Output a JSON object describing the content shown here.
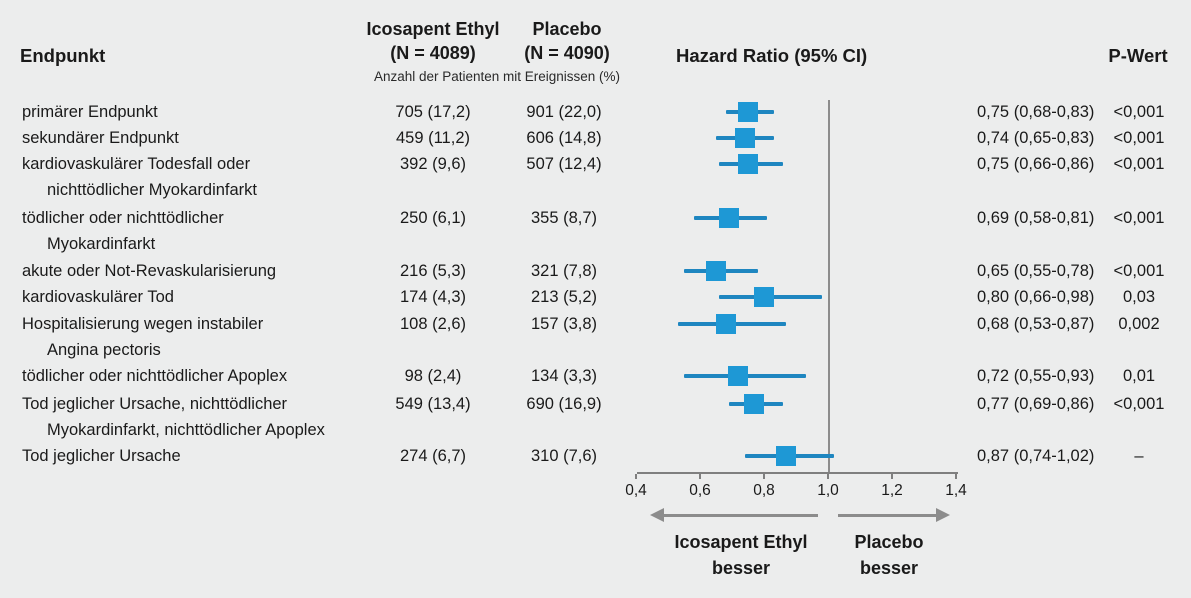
{
  "header": {
    "endpoint_col": "Endpunkt",
    "group1_line1": "Icosapent Ethyl",
    "group1_line2": "(N = 4089)",
    "group2_line1": "Placebo",
    "group2_line2": "(N = 4090)",
    "events_note": "Anzahl der Patienten mit Ereignissen (%)",
    "hr_col": "Hazard Ratio (95% CI)",
    "p_col": "P-Wert"
  },
  "footer": {
    "left_arrow_line1": "Icosapent Ethyl",
    "left_arrow_line2": "besser",
    "right_arrow_line1": "Placebo",
    "right_arrow_line2": "besser"
  },
  "colors": {
    "background": "#ECEDED",
    "text": "#1A1A1A",
    "marker_blue": "#1E98D5",
    "ci_line_blue": "#1E86C0",
    "reference_line_gray": "#8C8C8C",
    "axis_gray": "#7F7F7F"
  },
  "chart_data": {
    "type": "forest",
    "title": "",
    "x_axis": {
      "range": [
        0.4,
        1.4
      ],
      "ticks": [
        0.4,
        0.6,
        0.8,
        1.0,
        1.2,
        1.4
      ],
      "tick_labels": [
        "0,4",
        "0,6",
        "0,8",
        "1,0",
        "1,2",
        "1,4"
      ],
      "reference_line": 1.0
    },
    "rows": [
      {
        "label_lines": [
          "primärer Endpunkt"
        ],
        "icosapent": "705 (17,2)",
        "placebo": "901 (22,0)",
        "hr": 0.75,
        "ci_low": 0.68,
        "ci_high": 0.83,
        "hr_ci_text": "0,75 (0,68-0,83)",
        "p_value": "<0,001"
      },
      {
        "label_lines": [
          "sekundärer Endpunkt"
        ],
        "icosapent": "459 (11,2)",
        "placebo": "606 (14,8)",
        "hr": 0.74,
        "ci_low": 0.65,
        "ci_high": 0.83,
        "hr_ci_text": "0,74 (0,65-0,83)",
        "p_value": "<0,001"
      },
      {
        "label_lines": [
          "kardiovaskulärer Todesfall oder",
          "nichttödlicher Myokardinfarkt"
        ],
        "icosapent": "392 (9,6)",
        "placebo": "507 (12,4)",
        "hr": 0.75,
        "ci_low": 0.66,
        "ci_high": 0.86,
        "hr_ci_text": "0,75 (0,66-0,86)",
        "p_value": "<0,001"
      },
      {
        "label_lines": [
          "tödlicher oder nichttödlicher",
          "Myokardinfarkt"
        ],
        "icosapent": "250 (6,1)",
        "placebo": "355 (8,7)",
        "hr": 0.69,
        "ci_low": 0.58,
        "ci_high": 0.81,
        "hr_ci_text": "0,69 (0,58-0,81)",
        "p_value": "<0,001"
      },
      {
        "label_lines": [
          "akute oder Not-Revaskularisierung"
        ],
        "icosapent": "216 (5,3)",
        "placebo": "321 (7,8)",
        "hr": 0.65,
        "ci_low": 0.55,
        "ci_high": 0.78,
        "hr_ci_text": "0,65 (0,55-0,78)",
        "p_value": "<0,001"
      },
      {
        "label_lines": [
          "kardiovaskulärer Tod"
        ],
        "icosapent": "174 (4,3)",
        "placebo": "213 (5,2)",
        "hr": 0.8,
        "ci_low": 0.66,
        "ci_high": 0.98,
        "hr_ci_text": "0,80 (0,66-0,98)",
        "p_value": "0,03"
      },
      {
        "label_lines": [
          "Hospitalisierung wegen instabiler",
          "Angina pectoris"
        ],
        "icosapent": "108 (2,6)",
        "placebo": "157 (3,8)",
        "hr": 0.68,
        "ci_low": 0.53,
        "ci_high": 0.87,
        "hr_ci_text": "0,68 (0,53-0,87)",
        "p_value": "0,002"
      },
      {
        "label_lines": [
          "tödlicher oder nichttödlicher Apoplex"
        ],
        "icosapent": "98 (2,4)",
        "placebo": "134 (3,3)",
        "hr": 0.72,
        "ci_low": 0.55,
        "ci_high": 0.93,
        "hr_ci_text": "0,72 (0,55-0,93)",
        "p_value": "0,01"
      },
      {
        "label_lines": [
          "Tod jeglicher Ursache, nichttödlicher",
          "Myokardinfarkt, nichttödlicher Apoplex"
        ],
        "icosapent": "549 (13,4)",
        "placebo": "690 (16,9)",
        "hr": 0.77,
        "ci_low": 0.69,
        "ci_high": 0.86,
        "hr_ci_text": "0,77 (0,69-0,86)",
        "p_value": "<0,001"
      },
      {
        "label_lines": [
          "Tod jeglicher Ursache"
        ],
        "icosapent": "274 (6,7)",
        "placebo": "310 (7,6)",
        "hr": 0.87,
        "ci_low": 0.74,
        "ci_high": 1.02,
        "hr_ci_text": "0,87 (0,74-1,02)",
        "p_value": "–"
      }
    ]
  }
}
